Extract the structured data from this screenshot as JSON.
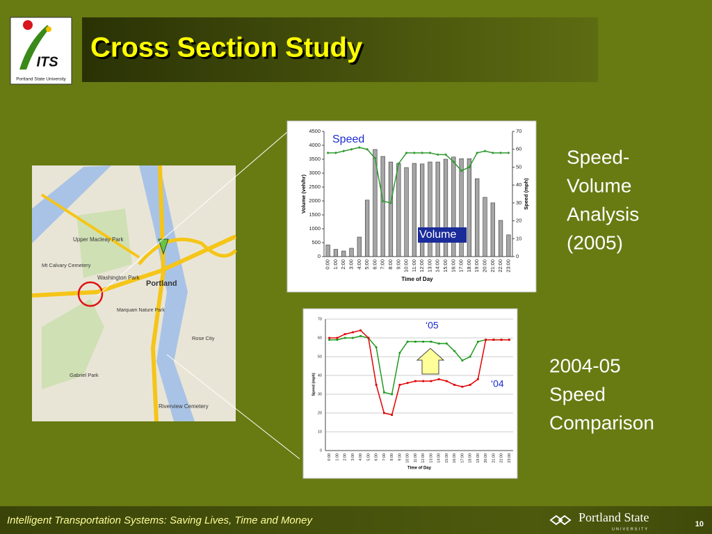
{
  "logo": {
    "mark": "ITS",
    "caption": "Portland State University"
  },
  "title": "Cross Section Study",
  "captions": {
    "top": [
      "Speed-",
      "Volume",
      "Analysis",
      "(2005)"
    ],
    "bottom": [
      "2004-05",
      "Speed",
      "Comparison"
    ]
  },
  "map": {
    "labels": [
      "Portland",
      "Upper Macleay Park",
      "Washington Park",
      "Mt Calvary Cemetery",
      "Riverview Cemetery",
      "Rose City",
      "Marquam Nature Park",
      "Gabriel Park"
    ]
  },
  "footer": {
    "tagline": "Intelligent Transportation Systems: Saving Lives, Time and Money",
    "university": "Portland State",
    "university_sub": "UNIVERSITY",
    "page": "10"
  },
  "chart_data": [
    {
      "type": "bar",
      "x_label": "Time of Day",
      "y_label": "Volume (veh/hr)",
      "y2_label": "Speed (mph)",
      "categories": [
        "0:00",
        "1:00",
        "2:00",
        "3:00",
        "4:00",
        "5:00",
        "6:00",
        "7:00",
        "8:00",
        "9:00",
        "10:00",
        "11:00",
        "12:00",
        "13:00",
        "14:00",
        "15:00",
        "16:00",
        "17:00",
        "18:00",
        "19:00",
        "20:00",
        "21:00",
        "22:00",
        "23:00"
      ],
      "series": [
        {
          "name": "Volume",
          "color": "#a6a6a6",
          "values": [
            420,
            260,
            200,
            300,
            700,
            2030,
            3850,
            3600,
            3400,
            3350,
            3200,
            3350,
            3330,
            3400,
            3400,
            3500,
            3580,
            3520,
            3520,
            2800,
            2130,
            1930,
            1300,
            780
          ]
        },
        {
          "name": "Speed",
          "color": "#2e9a2e",
          "type": "line",
          "axis": "y2",
          "values": [
            58,
            58,
            59,
            60,
            61,
            60,
            55,
            31,
            30,
            52,
            58,
            58,
            58,
            58,
            57,
            57,
            53,
            48,
            50,
            58,
            59,
            58,
            58,
            58
          ]
        }
      ],
      "ylim": [
        0,
        4500
      ],
      "yticks": [
        0,
        500,
        1000,
        1500,
        2000,
        2500,
        3000,
        3500,
        4000,
        4500
      ],
      "y2lim": [
        0,
        70
      ],
      "y2ticks": [
        0,
        10,
        20,
        30,
        40,
        50,
        60,
        70
      ],
      "grid": false
    },
    {
      "type": "line",
      "x_label": "Time of Day",
      "y_label": "Speed (mph)",
      "categories": [
        "0:00",
        "1:00",
        "2:00",
        "3:00",
        "4:00",
        "5:00",
        "6:00",
        "7:00",
        "8:00",
        "9:00",
        "10:00",
        "11:00",
        "12:00",
        "13:00",
        "14:00",
        "15:00",
        "16:00",
        "17:00",
        "18:00",
        "19:00",
        "20:00",
        "21:00",
        "22:00",
        "23:00"
      ],
      "series": [
        {
          "name": "‘05",
          "color": "#1f9a1f",
          "values": [
            59,
            59,
            60,
            60,
            61,
            60,
            55,
            31,
            30,
            52,
            58,
            58,
            58,
            58,
            57,
            57,
            53,
            48,
            50,
            58,
            59,
            59,
            59,
            59
          ]
        },
        {
          "name": "‘04",
          "color": "#e00000",
          "values": [
            60,
            60,
            62,
            63,
            64,
            60,
            35,
            20,
            19,
            35,
            36,
            37,
            37,
            37,
            38,
            37,
            35,
            34,
            35,
            38,
            59,
            59,
            59,
            59
          ]
        }
      ],
      "ylim": [
        0,
        70
      ],
      "yticks": [
        0,
        10,
        20,
        30,
        40,
        50,
        60,
        70
      ],
      "grid": true
    }
  ]
}
